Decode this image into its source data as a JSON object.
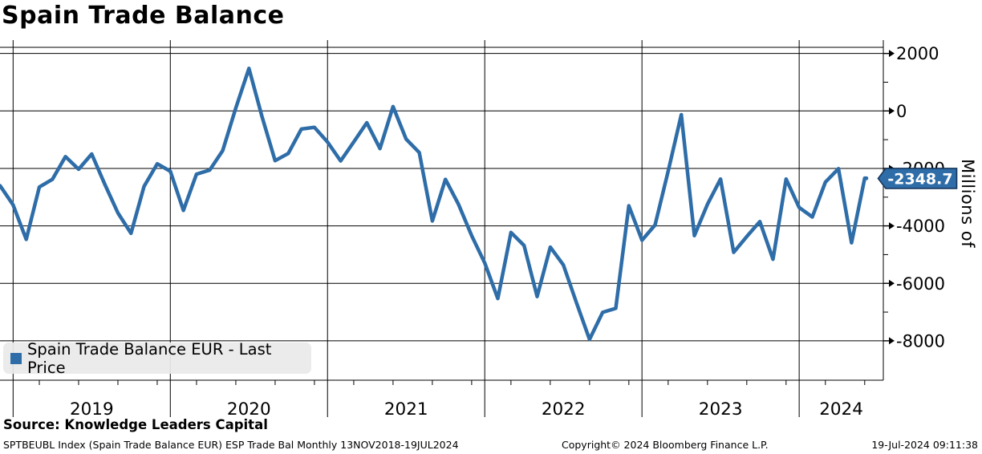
{
  "title": "Spain Trade Balance",
  "legend": {
    "label": "Spain Trade Balance EUR - Last Price"
  },
  "y_axis_title": "Millions of",
  "last_price_tag": "-2348.7",
  "source_line": "Source: Knowledge Leaders Capital",
  "footer": {
    "left": "SPTBEUBL Index (Spain Trade Balance EUR) ESP Trade Bal  Monthly 13NOV2018-19JUL2024",
    "center": "Copyright© 2024 Bloomberg Finance L.P.",
    "right": "19-Jul-2024 09:11:38"
  },
  "colors": {
    "line": "#2E6DA8",
    "tag_bg": "#2E6DA8",
    "tag_border": "#16365C",
    "tag_text": "#FFFFFF",
    "grid": "#000000",
    "legend_bg": "#E9E9E9"
  },
  "chart_data": {
    "type": "line",
    "title": "Spain Trade Balance",
    "series_name": "Spain Trade Balance EUR - Last Price",
    "x_unit": "month",
    "x_range": "13NOV2018-19JUL2024",
    "ylim": [
      -8000,
      2000
    ],
    "ylabel": "Millions of",
    "grid": true,
    "legend_position": "bottom-left",
    "last_price": -2348.7,
    "y_ticks": [
      2000,
      0,
      -2000,
      -4000,
      -6000,
      -8000
    ],
    "y_minor_ticks": [
      1000,
      -1000,
      -3000,
      -5000,
      -7000
    ],
    "x_year_labels": [
      "2019",
      "2020",
      "2021",
      "2022",
      "2023",
      "2024"
    ],
    "points": [
      {
        "date": "2018-11",
        "value": -2600
      },
      {
        "date": "2018-12",
        "value": -3270
      },
      {
        "date": "2019-01",
        "value": -4470
      },
      {
        "date": "2019-02",
        "value": -2650
      },
      {
        "date": "2019-03",
        "value": -2380
      },
      {
        "date": "2019-04",
        "value": -1590
      },
      {
        "date": "2019-05",
        "value": -2030
      },
      {
        "date": "2019-06",
        "value": -1500
      },
      {
        "date": "2019-07",
        "value": -2550
      },
      {
        "date": "2019-08",
        "value": -3550
      },
      {
        "date": "2019-09",
        "value": -4260
      },
      {
        "date": "2019-10",
        "value": -2620
      },
      {
        "date": "2019-11",
        "value": -1840
      },
      {
        "date": "2019-12",
        "value": -2100
      },
      {
        "date": "2020-01",
        "value": -3460
      },
      {
        "date": "2020-02",
        "value": -2200
      },
      {
        "date": "2020-03",
        "value": -2060
      },
      {
        "date": "2020-04",
        "value": -1380
      },
      {
        "date": "2020-05",
        "value": 100
      },
      {
        "date": "2020-06",
        "value": 1480
      },
      {
        "date": "2020-07",
        "value": -200
      },
      {
        "date": "2020-08",
        "value": -1730
      },
      {
        "date": "2020-09",
        "value": -1480
      },
      {
        "date": "2020-10",
        "value": -630
      },
      {
        "date": "2020-11",
        "value": -570
      },
      {
        "date": "2020-12",
        "value": -1080
      },
      {
        "date": "2021-01",
        "value": -1740
      },
      {
        "date": "2021-02",
        "value": -1080
      },
      {
        "date": "2021-03",
        "value": -410
      },
      {
        "date": "2021-04",
        "value": -1310
      },
      {
        "date": "2021-05",
        "value": 150
      },
      {
        "date": "2021-06",
        "value": -980
      },
      {
        "date": "2021-07",
        "value": -1450
      },
      {
        "date": "2021-08",
        "value": -3830
      },
      {
        "date": "2021-09",
        "value": -2380
      },
      {
        "date": "2021-10",
        "value": -3250
      },
      {
        "date": "2021-11",
        "value": -4340
      },
      {
        "date": "2021-12",
        "value": -5290
      },
      {
        "date": "2022-01",
        "value": -6530
      },
      {
        "date": "2022-02",
        "value": -4230
      },
      {
        "date": "2022-03",
        "value": -4680
      },
      {
        "date": "2022-04",
        "value": -6460
      },
      {
        "date": "2022-05",
        "value": -4740
      },
      {
        "date": "2022-06",
        "value": -5360
      },
      {
        "date": "2022-07",
        "value": -6670
      },
      {
        "date": "2022-08",
        "value": -7950
      },
      {
        "date": "2022-09",
        "value": -7010
      },
      {
        "date": "2022-10",
        "value": -6870
      },
      {
        "date": "2022-11",
        "value": -3300
      },
      {
        "date": "2022-12",
        "value": -4500
      },
      {
        "date": "2023-01",
        "value": -3970
      },
      {
        "date": "2023-02",
        "value": -2100
      },
      {
        "date": "2023-03",
        "value": -130
      },
      {
        "date": "2023-04",
        "value": -4340
      },
      {
        "date": "2023-05",
        "value": -3250
      },
      {
        "date": "2023-06",
        "value": -2370
      },
      {
        "date": "2023-07",
        "value": -4920
      },
      {
        "date": "2023-08",
        "value": -4370
      },
      {
        "date": "2023-09",
        "value": -3850
      },
      {
        "date": "2023-10",
        "value": -5160
      },
      {
        "date": "2023-11",
        "value": -2370
      },
      {
        "date": "2023-12",
        "value": -3360
      },
      {
        "date": "2024-01",
        "value": -3690
      },
      {
        "date": "2024-02",
        "value": -2480
      },
      {
        "date": "2024-03",
        "value": -2010
      },
      {
        "date": "2024-04",
        "value": -4590
      },
      {
        "date": "2024-05",
        "value": -2340
      },
      {
        "date": "2024-06",
        "value": -2340
      },
      {
        "date": "2024-07",
        "value": -2348.7
      }
    ]
  }
}
